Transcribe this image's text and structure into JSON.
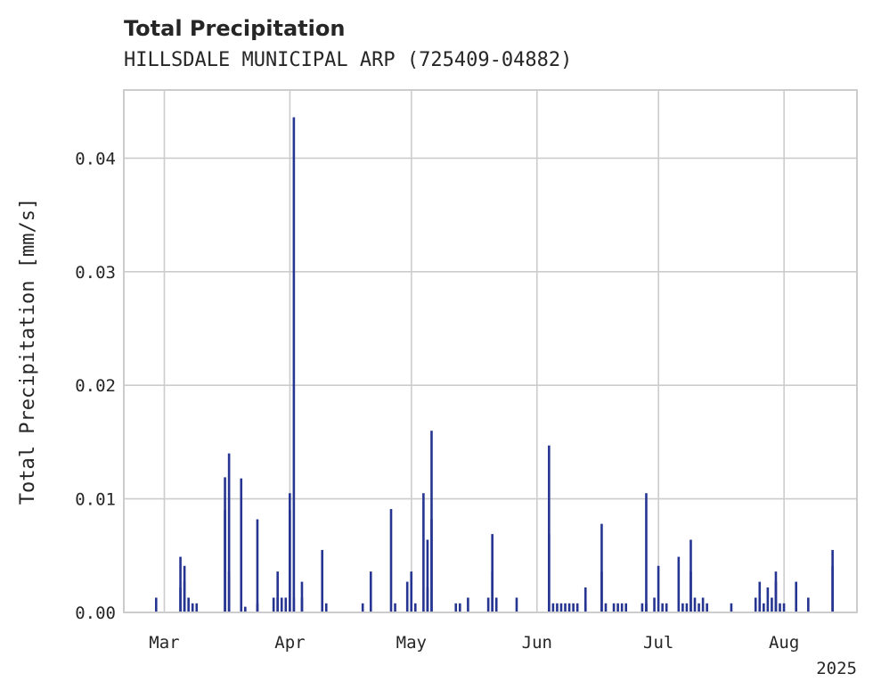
{
  "chart_data": {
    "type": "bar",
    "title": "Total Precipitation",
    "subtitle": "HILLSDALE MUNICIPAL ARP (725409-04882)",
    "xlabel": "",
    "ylabel": "Total Precipitation [mm/s]",
    "ylim": [
      0,
      0.046
    ],
    "xlim": [
      "2025-02-19",
      "2025-08-19"
    ],
    "yticks": [
      0,
      0.01,
      0.02,
      0.03,
      0.04
    ],
    "ytick_labels": [
      "0.00",
      "0.01",
      "0.02",
      "0.03",
      "0.04"
    ],
    "xticks": [
      "2025-03-01",
      "2025-04-01",
      "2025-05-01",
      "2025-06-01",
      "2025-07-01",
      "2025-08-01"
    ],
    "xtick_labels": [
      "Mar",
      "Apr",
      "May",
      "Jun",
      "Jul",
      "Aug"
    ],
    "x_offset_label": "2025",
    "grid": true,
    "color": "#263591",
    "series": [
      {
        "x": [
          "2025-02-27",
          "2025-03-05",
          "2025-03-05",
          "2025-03-06",
          "2025-03-06",
          "2025-03-07",
          "2025-03-08",
          "2025-03-09",
          "2025-03-16",
          "2025-03-16",
          "2025-03-17",
          "2025-03-17",
          "2025-03-20",
          "2025-03-21",
          "2025-03-24",
          "2025-03-24",
          "2025-03-28",
          "2025-03-29",
          "2025-03-29",
          "2025-03-30",
          "2025-03-31",
          "2025-04-01",
          "2025-04-01",
          "2025-04-02",
          "2025-04-02",
          "2025-04-04",
          "2025-04-04",
          "2025-04-09",
          "2025-04-10",
          "2025-04-19",
          "2025-04-21",
          "2025-04-26",
          "2025-04-27",
          "2025-04-30",
          "2025-05-01",
          "2025-05-02",
          "2025-05-04",
          "2025-05-05",
          "2025-05-05",
          "2025-05-06",
          "2025-05-06",
          "2025-05-12",
          "2025-05-13",
          "2025-05-15",
          "2025-05-20",
          "2025-05-21",
          "2025-05-21",
          "2025-05-22",
          "2025-05-27",
          "2025-06-04",
          "2025-06-04",
          "2025-06-05",
          "2025-06-06",
          "2025-06-07",
          "2025-06-08",
          "2025-06-09",
          "2025-06-10",
          "2025-06-11",
          "2025-06-13",
          "2025-06-13",
          "2025-06-17",
          "2025-06-17",
          "2025-06-18",
          "2025-06-20",
          "2025-06-21",
          "2025-06-22",
          "2025-06-23",
          "2025-06-27",
          "2025-06-28",
          "2025-06-28",
          "2025-06-30",
          "2025-07-01",
          "2025-07-02",
          "2025-07-03",
          "2025-07-06",
          "2025-07-07",
          "2025-07-08",
          "2025-07-09",
          "2025-07-09",
          "2025-07-10",
          "2025-07-11",
          "2025-07-12",
          "2025-07-13",
          "2025-07-19",
          "2025-07-25",
          "2025-07-26",
          "2025-07-26",
          "2025-07-27",
          "2025-07-28",
          "2025-07-29",
          "2025-07-30",
          "2025-07-30",
          "2025-07-31",
          "2025-08-01",
          "2025-08-04",
          "2025-08-07",
          "2025-08-13",
          "2025-08-13"
        ],
        "values": [
          0.0013,
          0.0022,
          0.0049,
          0.0041,
          0.0027,
          0.0013,
          0.0008,
          0.0008,
          0.0119,
          0.009,
          0.014,
          0.0036,
          0.0118,
          0.0005,
          0.0082,
          0.0008,
          0.0013,
          0.0036,
          0.0013,
          0.0013,
          0.0013,
          0.0105,
          0.009,
          0.0436,
          0.0013,
          0.0013,
          0.0027,
          0.0055,
          0.0008,
          0.0008,
          0.0036,
          0.0091,
          0.0008,
          0.0027,
          0.0036,
          0.0008,
          0.0105,
          0.0022,
          0.0064,
          0.016,
          0.0082,
          0.0008,
          0.0008,
          0.0013,
          0.0013,
          0.0036,
          0.0069,
          0.0013,
          0.0013,
          0.0069,
          0.0147,
          0.0008,
          0.0008,
          0.0008,
          0.0008,
          0.0008,
          0.0008,
          0.0008,
          0.0022,
          0.0008,
          0.0078,
          0.0036,
          0.0008,
          0.0008,
          0.0008,
          0.0008,
          0.0008,
          0.0008,
          0.0105,
          0.0008,
          0.0013,
          0.0041,
          0.0008,
          0.0008,
          0.0049,
          0.0008,
          0.0008,
          0.0036,
          0.0064,
          0.0013,
          0.0008,
          0.0013,
          0.0008,
          0.0008,
          0.0013,
          0.0027,
          0.0013,
          0.0008,
          0.0022,
          0.0013,
          0.0027,
          0.0036,
          0.0008,
          0.0008,
          0.0027,
          0.0013,
          0.0055,
          0.0041
        ]
      }
    ]
  }
}
